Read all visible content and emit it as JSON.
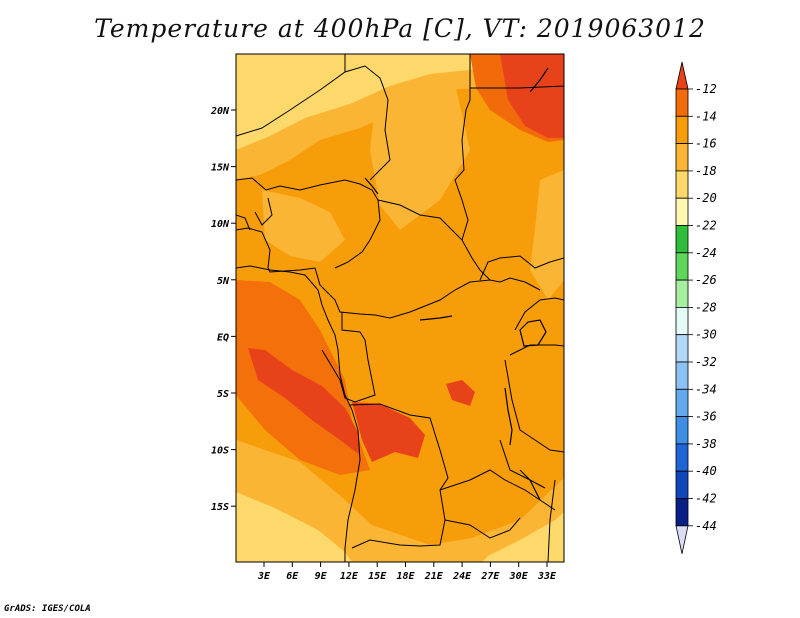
{
  "title": "Temperature at 400hPa [C], VT: 2019063012",
  "credit": "GrADS: IGES/COLA",
  "map": {
    "lat_labels": [
      "20N",
      "15N",
      "10N",
      "5N",
      "EQ",
      "5S",
      "10S",
      "15S"
    ],
    "lon_labels": [
      "3E",
      "6E",
      "9E",
      "12E",
      "15E",
      "18E",
      "21E",
      "24E",
      "27E",
      "30E",
      "33E"
    ]
  },
  "colorbar": {
    "labels": [
      "-12",
      "-14",
      "-16",
      "-18",
      "-20",
      "-22",
      "-24",
      "-26",
      "-28",
      "-30",
      "-32",
      "-34",
      "-36",
      "-38",
      "-40",
      "-42",
      "-44"
    ],
    "colors": [
      "#e8421b",
      "#f26b0a",
      "#f89d0a",
      "#fbb535",
      "#fdd86a",
      "#fff7b0",
      "#2fbe3a",
      "#5fd65a",
      "#a6eea0",
      "#e4fbf7",
      "#b2d8f8",
      "#8cc1f3",
      "#63a9ee",
      "#3e8ee6",
      "#2065d8",
      "#1246bc",
      "#0a1f85",
      "#dcdcf6"
    ]
  }
}
